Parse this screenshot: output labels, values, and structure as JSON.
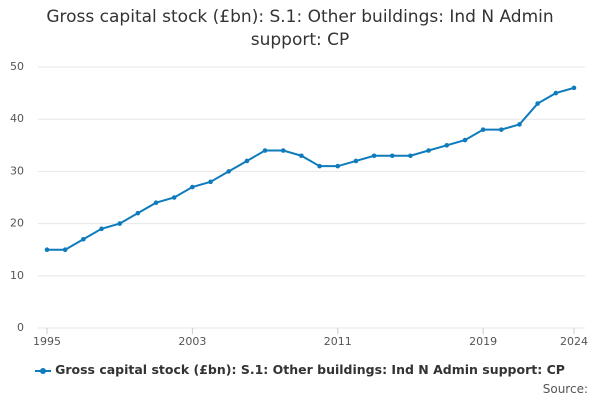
{
  "chart_data": {
    "type": "line",
    "title": "Gross capital stock (£bn): S.1: Other buildings: Ind N Admin support: CP",
    "x": [
      1995,
      1996,
      1997,
      1998,
      1999,
      2000,
      2001,
      2002,
      2003,
      2004,
      2005,
      2006,
      2007,
      2008,
      2009,
      2010,
      2011,
      2012,
      2013,
      2014,
      2015,
      2016,
      2017,
      2018,
      2019,
      2020,
      2021,
      2022,
      2023,
      2024
    ],
    "series": [
      {
        "name": "Gross capital stock (£bn): S.1: Other buildings: Ind N Admin support: CP",
        "color": "#0e7bbd",
        "values": [
          15,
          15,
          17,
          19,
          20,
          22,
          24,
          25,
          27,
          28,
          30,
          32,
          34,
          34,
          33,
          31,
          31,
          32,
          33,
          33,
          33,
          34,
          35,
          36,
          38,
          38,
          39,
          43,
          45,
          46
        ]
      }
    ],
    "xlim": [
      1995,
      2024
    ],
    "xticks": [
      1995,
      2003,
      2011,
      2019,
      2024
    ],
    "ylim": [
      0,
      50
    ],
    "yticks": [
      0,
      10,
      20,
      30,
      40,
      50
    ],
    "grid": true,
    "legend": "bottom",
    "source": "Source:"
  }
}
